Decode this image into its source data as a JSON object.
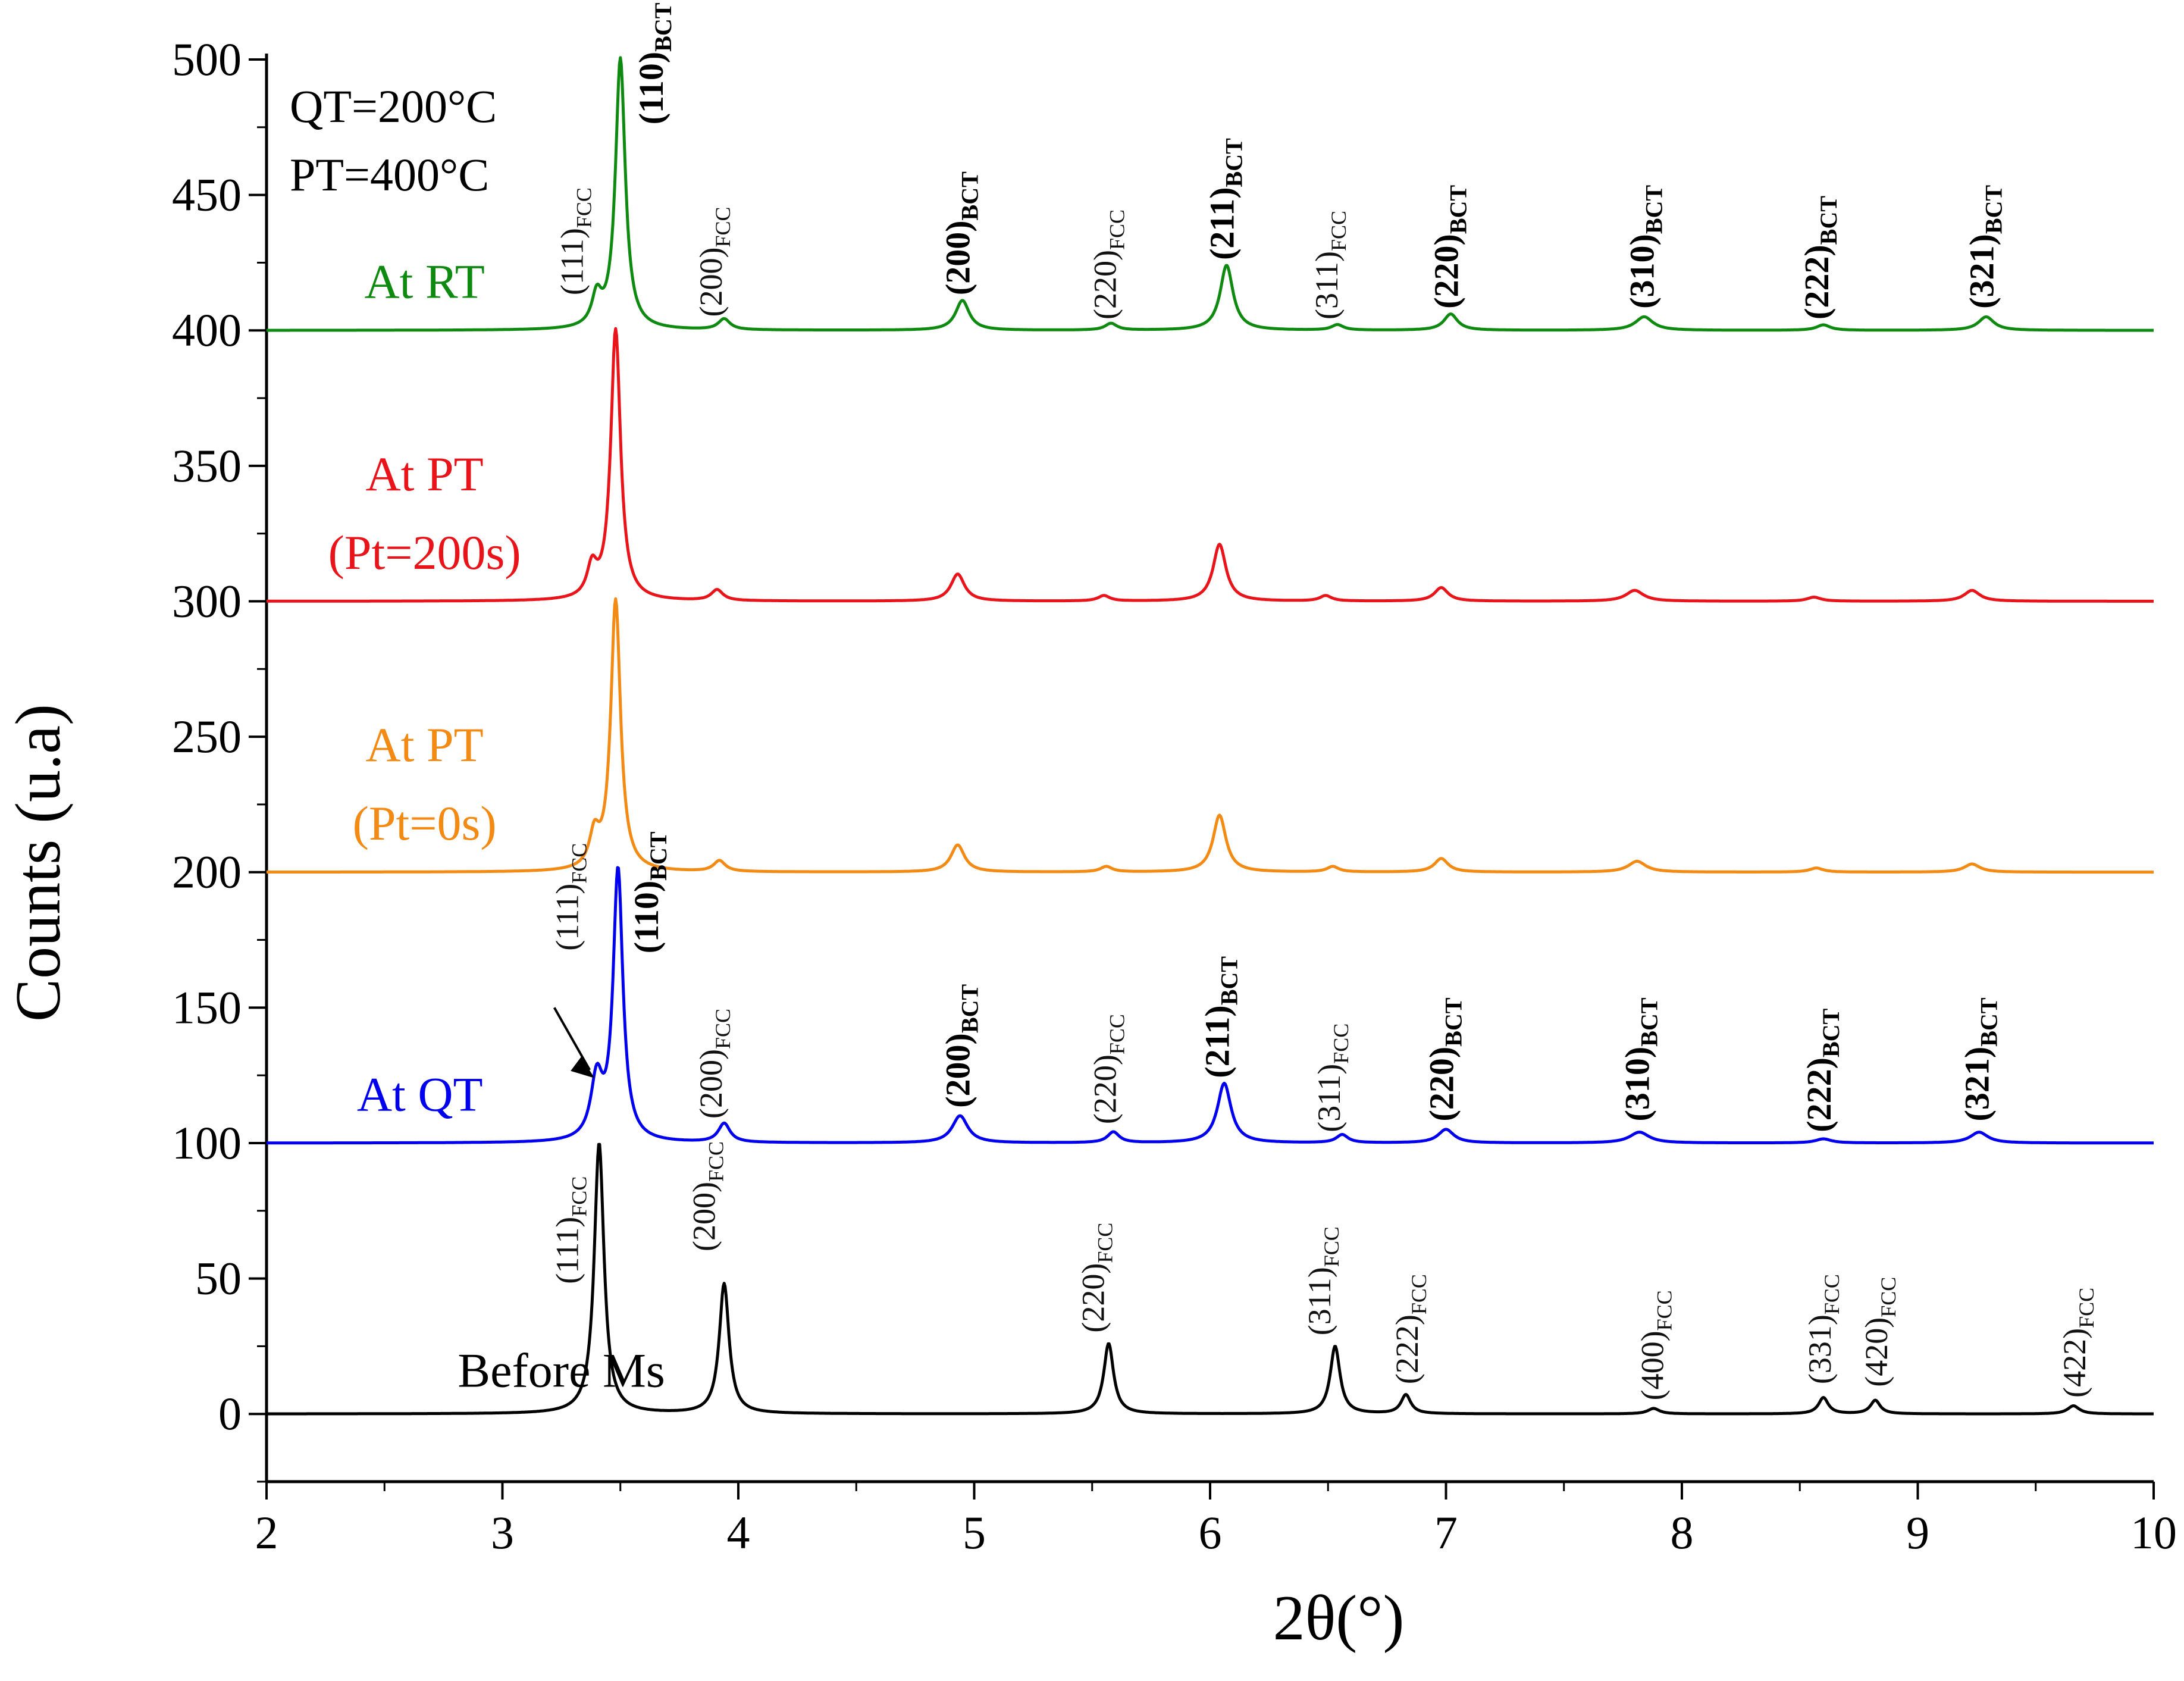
{
  "chart_data": {
    "type": "line",
    "title": "",
    "xlabel": "2θ(°)",
    "ylabel": "Counts (u.a)",
    "xlim": [
      2,
      10
    ],
    "ylim": [
      -25,
      500
    ],
    "x_ticks": [
      "2",
      "3",
      "4",
      "5",
      "6",
      "7",
      "8",
      "9",
      "10"
    ],
    "y_ticks": [
      "0",
      "50",
      "100",
      "150",
      "200",
      "250",
      "300",
      "350",
      "400",
      "450",
      "500"
    ],
    "grid": false,
    "annotations": [
      "QT=200°C",
      "PT=400°C"
    ],
    "series": [
      {
        "name": "Before Ms",
        "label_lines": [
          "Before Ms"
        ],
        "color": "#000000",
        "baseline": 0,
        "peaks": [
          {
            "x": 3.41,
            "h": 100,
            "w": 0.025
          },
          {
            "x": 3.94,
            "h": 48,
            "w": 0.025
          },
          {
            "x": 5.57,
            "h": 26,
            "w": 0.025
          },
          {
            "x": 6.53,
            "h": 25,
            "w": 0.025
          },
          {
            "x": 6.83,
            "h": 7,
            "w": 0.025
          },
          {
            "x": 7.88,
            "h": 2,
            "w": 0.03
          },
          {
            "x": 8.6,
            "h": 6,
            "w": 0.025
          },
          {
            "x": 8.82,
            "h": 5,
            "w": 0.025
          },
          {
            "x": 9.66,
            "h": 3,
            "w": 0.03
          }
        ]
      },
      {
        "name": "At QT",
        "label_lines": [
          "At QT"
        ],
        "color": "#0000ee",
        "baseline": 100,
        "peaks": [
          {
            "x": 3.4,
            "h": 22,
            "w": 0.03
          },
          {
            "x": 3.49,
            "h": 100,
            "w": 0.025
          },
          {
            "x": 3.94,
            "h": 7,
            "w": 0.03
          },
          {
            "x": 4.94,
            "h": 10,
            "w": 0.04
          },
          {
            "x": 5.59,
            "h": 4,
            "w": 0.03
          },
          {
            "x": 6.06,
            "h": 22,
            "w": 0.035
          },
          {
            "x": 6.56,
            "h": 3,
            "w": 0.03
          },
          {
            "x": 7.0,
            "h": 5,
            "w": 0.04
          },
          {
            "x": 7.82,
            "h": 4,
            "w": 0.05
          },
          {
            "x": 8.6,
            "h": 1.5,
            "w": 0.04
          },
          {
            "x": 9.26,
            "h": 4,
            "w": 0.045
          }
        ]
      },
      {
        "name": "At PT (Pt=0s)",
        "label_lines": [
          "At PT",
          "(Pt=0s)"
        ],
        "color": "#f28a14",
        "baseline": 200,
        "peaks": [
          {
            "x": 3.39,
            "h": 12,
            "w": 0.025
          },
          {
            "x": 3.48,
            "h": 100,
            "w": 0.025
          },
          {
            "x": 3.92,
            "h": 4,
            "w": 0.03
          },
          {
            "x": 4.93,
            "h": 10,
            "w": 0.035
          },
          {
            "x": 5.56,
            "h": 2,
            "w": 0.03
          },
          {
            "x": 6.04,
            "h": 21,
            "w": 0.033
          },
          {
            "x": 6.52,
            "h": 2,
            "w": 0.03
          },
          {
            "x": 6.98,
            "h": 5,
            "w": 0.035
          },
          {
            "x": 7.81,
            "h": 4,
            "w": 0.045
          },
          {
            "x": 8.57,
            "h": 1.5,
            "w": 0.035
          },
          {
            "x": 9.23,
            "h": 3,
            "w": 0.04
          }
        ]
      },
      {
        "name": "At PT (Pt=200s)",
        "label_lines": [
          "At PT",
          "(Pt=200s)"
        ],
        "color": "#e8141a",
        "baseline": 300,
        "peaks": [
          {
            "x": 3.38,
            "h": 11,
            "w": 0.025
          },
          {
            "x": 3.48,
            "h": 100,
            "w": 0.025
          },
          {
            "x": 3.91,
            "h": 4,
            "w": 0.03
          },
          {
            "x": 4.93,
            "h": 10,
            "w": 0.035
          },
          {
            "x": 5.55,
            "h": 2,
            "w": 0.03
          },
          {
            "x": 6.04,
            "h": 21,
            "w": 0.033
          },
          {
            "x": 6.49,
            "h": 2,
            "w": 0.03
          },
          {
            "x": 6.98,
            "h": 5,
            "w": 0.035
          },
          {
            "x": 7.8,
            "h": 4,
            "w": 0.045
          },
          {
            "x": 8.56,
            "h": 1.5,
            "w": 0.035
          },
          {
            "x": 9.23,
            "h": 4,
            "w": 0.04
          }
        ]
      },
      {
        "name": "At RT",
        "label_lines": [
          "At RT"
        ],
        "color": "#0f8a10",
        "baseline": 400,
        "peaks": [
          {
            "x": 3.4,
            "h": 11,
            "w": 0.025
          },
          {
            "x": 3.5,
            "h": 100,
            "w": 0.025
          },
          {
            "x": 3.94,
            "h": 4,
            "w": 0.03
          },
          {
            "x": 4.95,
            "h": 11,
            "w": 0.035
          },
          {
            "x": 5.58,
            "h": 2.5,
            "w": 0.03
          },
          {
            "x": 6.07,
            "h": 24,
            "w": 0.033
          },
          {
            "x": 6.54,
            "h": 2,
            "w": 0.03
          },
          {
            "x": 7.02,
            "h": 6,
            "w": 0.035
          },
          {
            "x": 7.84,
            "h": 5,
            "w": 0.045
          },
          {
            "x": 8.6,
            "h": 2,
            "w": 0.035
          },
          {
            "x": 9.29,
            "h": 5,
            "w": 0.04
          }
        ]
      }
    ],
    "peak_labels": [
      {
        "group": "before",
        "main": "(111)",
        "sub": "FCC",
        "bold": false
      },
      {
        "group": "before",
        "main": "(200)",
        "sub": "FCC",
        "bold": false
      },
      {
        "group": "before",
        "main": "(220)",
        "sub": "FCC",
        "bold": false
      },
      {
        "group": "before",
        "main": "(311)",
        "sub": "FCC",
        "bold": false
      },
      {
        "group": "before",
        "main": "(222)",
        "sub": "FCC",
        "bold": false
      },
      {
        "group": "before",
        "main": "(400)",
        "sub": "FCC",
        "bold": false
      },
      {
        "group": "before",
        "main": "(331)",
        "sub": "FCC",
        "bold": false
      },
      {
        "group": "before",
        "main": "(420)",
        "sub": "FCC",
        "bold": false
      },
      {
        "group": "before",
        "main": "(422)",
        "sub": "FCC",
        "bold": false
      },
      {
        "group": "qt",
        "main": "(111)",
        "sub": "FCC",
        "bold": false
      },
      {
        "group": "qt",
        "main": "(110)",
        "sub": "BCT",
        "bold": true
      },
      {
        "group": "qt",
        "main": "(200)",
        "sub": "FCC",
        "bold": false
      },
      {
        "group": "qt",
        "main": "(200)",
        "sub": "BCT",
        "bold": true
      },
      {
        "group": "qt",
        "main": "(220)",
        "sub": "FCC",
        "bold": false
      },
      {
        "group": "qt",
        "main": "(211)",
        "sub": "BCT",
        "bold": true
      },
      {
        "group": "qt",
        "main": "(311)",
        "sub": "FCC",
        "bold": false
      },
      {
        "group": "qt",
        "main": "(220)",
        "sub": "BCT",
        "bold": true
      },
      {
        "group": "qt",
        "main": "(310)",
        "sub": "BCT",
        "bold": true
      },
      {
        "group": "qt",
        "main": "(222)",
        "sub": "BCT",
        "bold": true
      },
      {
        "group": "qt",
        "main": "(321)",
        "sub": "BCT",
        "bold": true
      },
      {
        "group": "rt",
        "main": "(111)",
        "sub": "FCC",
        "bold": false
      },
      {
        "group": "rt",
        "main": "(110)",
        "sub": "BCT",
        "bold": true
      },
      {
        "group": "rt",
        "main": "(200)",
        "sub": "FCC",
        "bold": false
      },
      {
        "group": "rt",
        "main": "(200)",
        "sub": "BCT",
        "bold": true
      },
      {
        "group": "rt",
        "main": "(220)",
        "sub": "FCC",
        "bold": false
      },
      {
        "group": "rt",
        "main": "(211)",
        "sub": "BCT",
        "bold": true
      },
      {
        "group": "rt",
        "main": "(311)",
        "sub": "FCC",
        "bold": false
      },
      {
        "group": "rt",
        "main": "(220)",
        "sub": "BCT",
        "bold": true
      },
      {
        "group": "rt",
        "main": "(310)",
        "sub": "BCT",
        "bold": true
      },
      {
        "group": "rt",
        "main": "(222)",
        "sub": "BCT",
        "bold": true
      },
      {
        "group": "rt",
        "main": "(321)",
        "sub": "BCT",
        "bold": true
      }
    ]
  }
}
